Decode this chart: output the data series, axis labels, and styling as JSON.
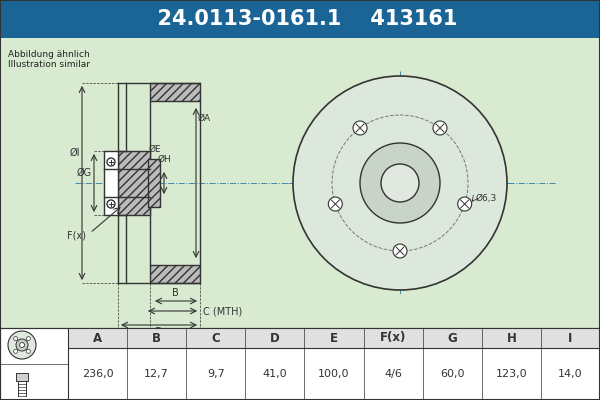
{
  "title_part_number": "24.0113-0161.1",
  "title_ref": "413161",
  "subtitle_line1": "Abbildung ähnlich",
  "subtitle_line2": "Illustration similar",
  "bg_color_top": "#1a6496",
  "bg_color_main": "#d8e8d0",
  "table_headers": [
    "A",
    "B",
    "C",
    "D",
    "E",
    "F(x)",
    "G",
    "H",
    "I"
  ],
  "table_values": [
    "236,0",
    "12,7",
    "9,7",
    "41,0",
    "100,0",
    "4/6",
    "60,0",
    "123,0",
    "14,0"
  ],
  "dim_label_bolt": "Ø6,3",
  "line_color": "#333333",
  "crosshair_color": "#4488aa",
  "table_bg": "#ffffff",
  "table_header_bg": "#e8e8e8",
  "watermark_color": "#c8d8c0"
}
